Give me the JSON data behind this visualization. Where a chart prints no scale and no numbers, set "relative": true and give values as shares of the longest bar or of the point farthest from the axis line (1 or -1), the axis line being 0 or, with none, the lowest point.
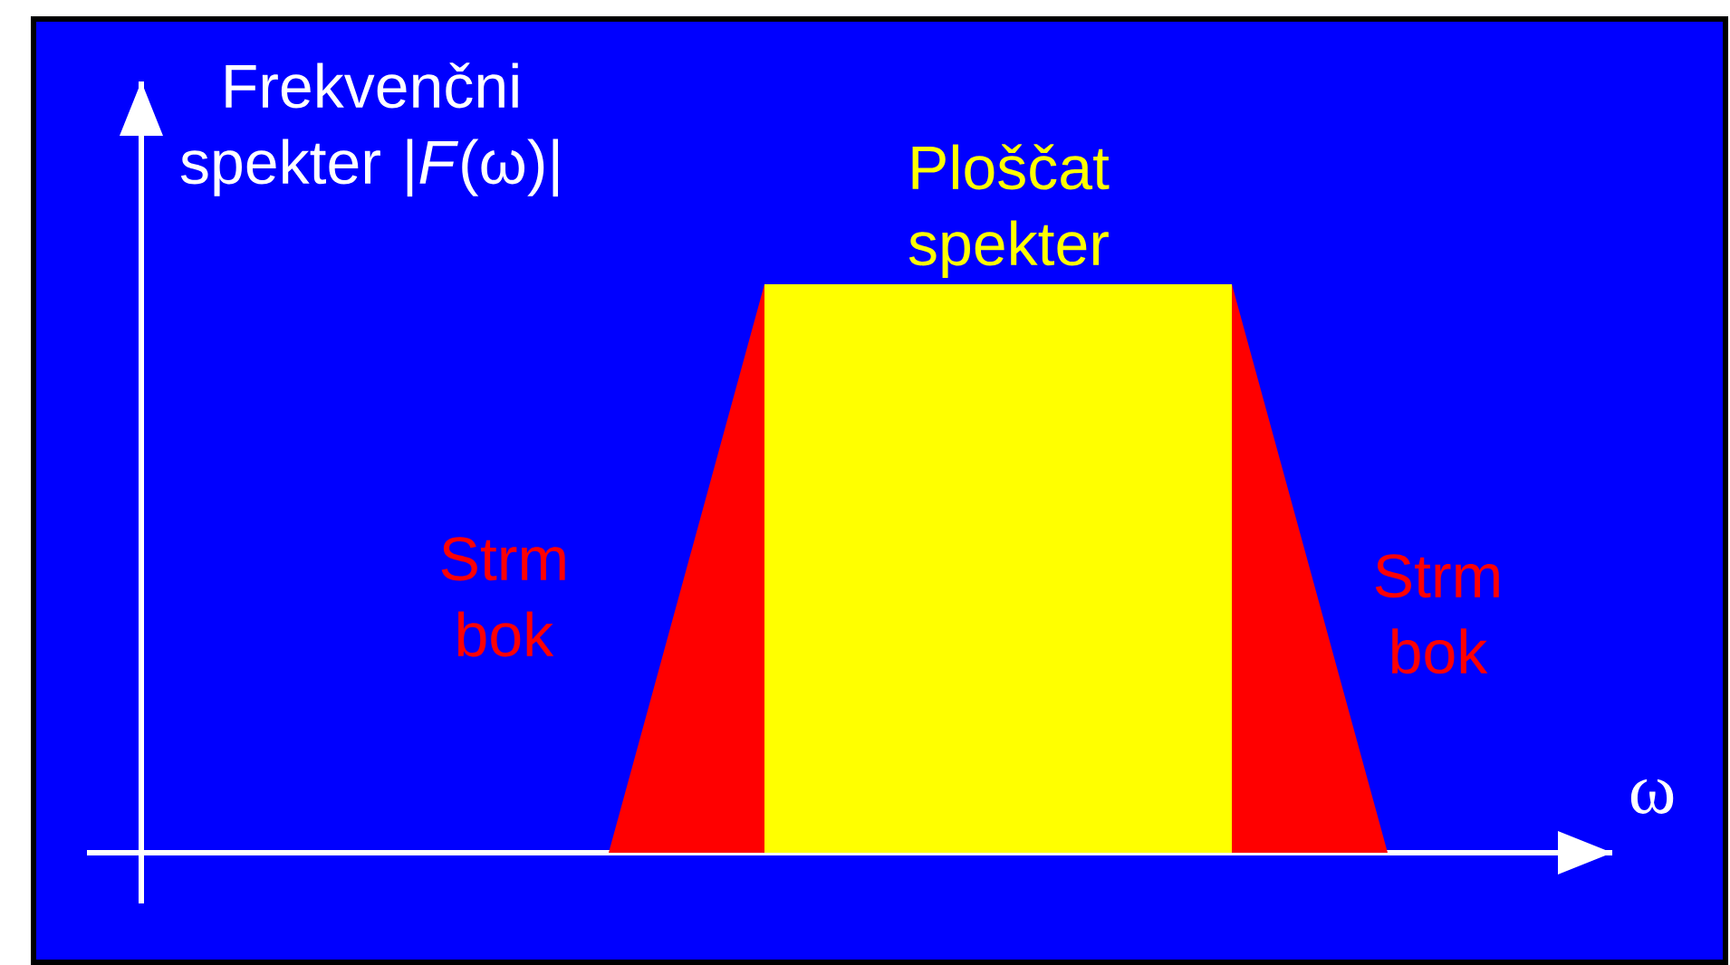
{
  "chart_data": {
    "type": "area",
    "relative": true,
    "xlabel": "ω",
    "ylabel": "Frekvenčni spekter |*F*(ω)|",
    "categories": [
      null,
      null,
      null,
      null,
      null,
      null,
      null,
      null,
      null,
      null
    ],
    "series": [
      {
        "color": "#ff0000",
        "values": [
          null,
          null,
          null,
          0,
          1,
          1,
          1,
          1,
          0,
          null
        ]
      },
      {
        "color": "#ffff00",
        "values": [
          null,
          null,
          null,
          null,
          1,
          1,
          1,
          1,
          null,
          null
        ]
      }
    ],
    "annotations": [
      "Ploščat spekter",
      "Strm bok",
      "Strm bok"
    ]
  }
}
